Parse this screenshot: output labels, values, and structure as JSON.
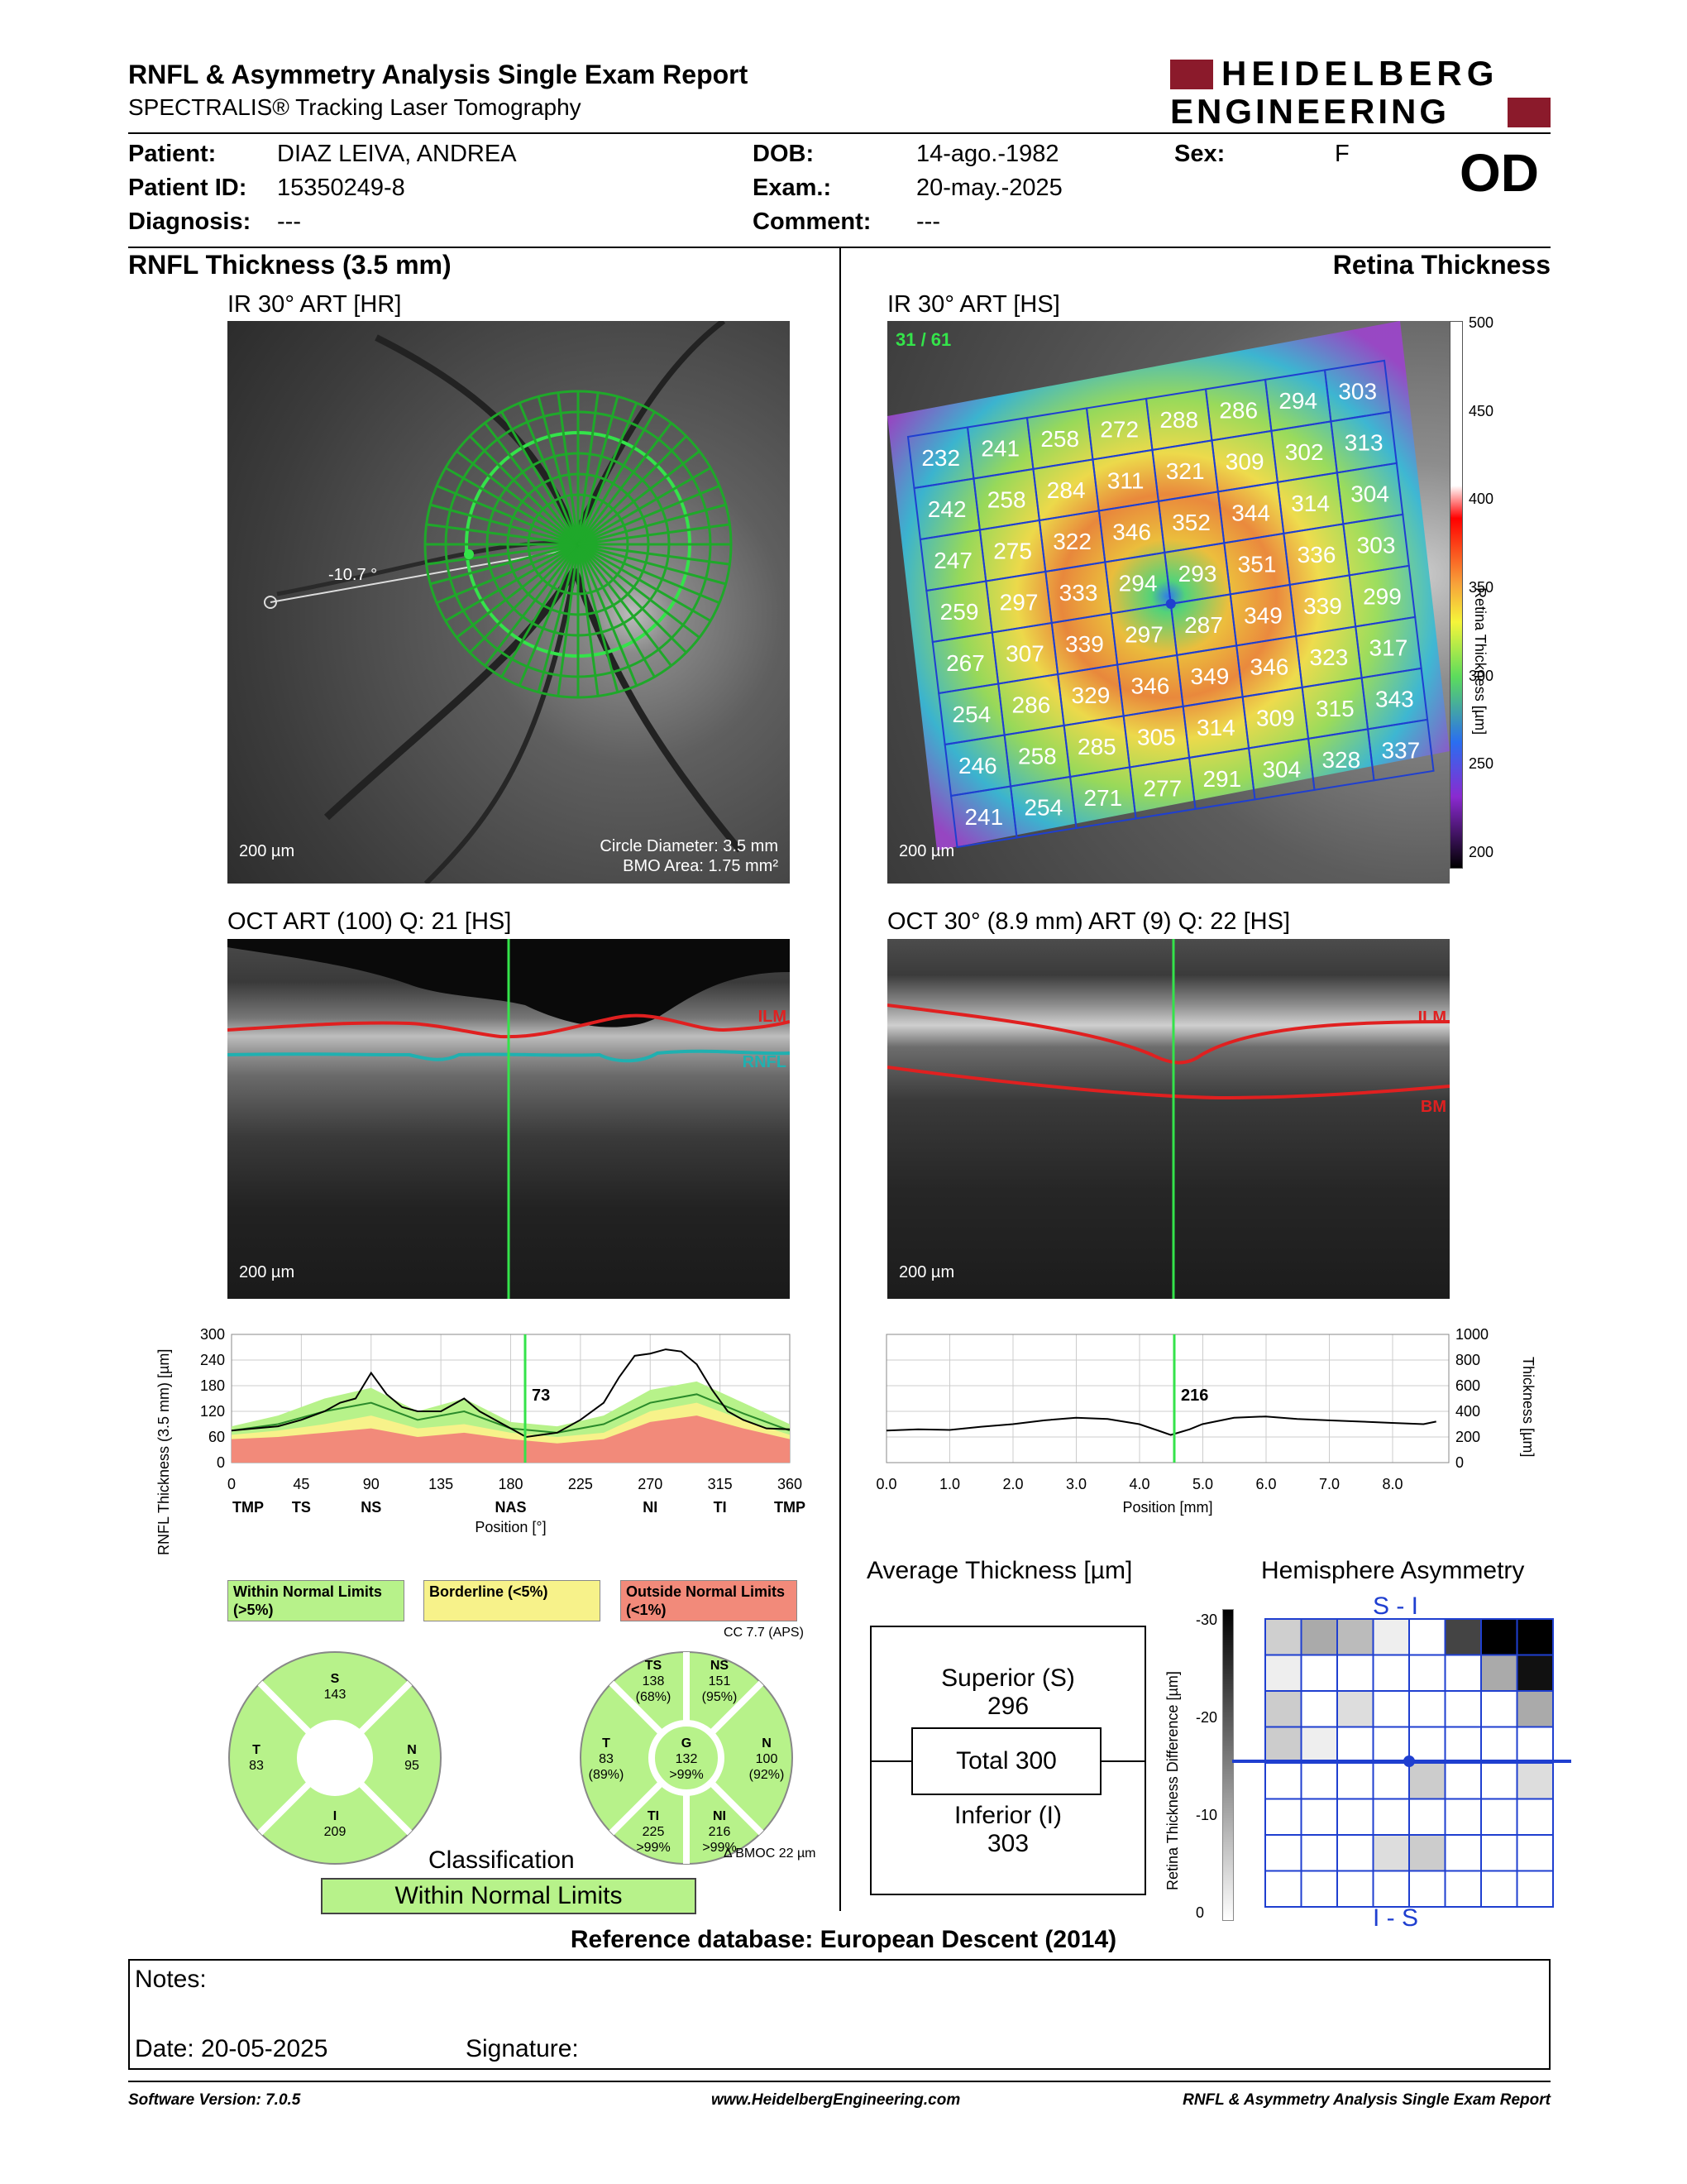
{
  "header": {
    "title": "RNFL & Asymmetry Analysis Single Exam Report",
    "subtitle": "SPECTRALIS® Tracking Laser Tomography",
    "logo_line1": "HEIDELBERG",
    "logo_line2": "ENGINEERING"
  },
  "patient": {
    "patient_label": "Patient:",
    "patient_value": "DIAZ LEIVA, ANDREA",
    "id_label": "Patient ID:",
    "id_value": "15350249-8",
    "diag_label": "Diagnosis:",
    "diag_value": "---",
    "dob_label": "DOB:",
    "dob_value": "14-ago.-1982",
    "exam_label": "Exam.:",
    "exam_value": "20-may.-2025",
    "comment_label": "Comment:",
    "comment_value": "---",
    "sex_label": "Sex:",
    "sex_value": "F",
    "eye": "OD"
  },
  "sections": {
    "left_title": "RNFL Thickness (3.5 mm)",
    "right_title": "Retina Thickness"
  },
  "ir_left": {
    "title": "IR 30° ART [HR]",
    "angle": "-10.7 °",
    "scale": "200 µm",
    "circle_diameter": "Circle Diameter: 3.5 mm",
    "bmo_area": "BMO Area: 1.75 mm²"
  },
  "ir_right": {
    "title": "IR 30° ART [HS]",
    "counter": "31 / 61",
    "scale": "200 µm",
    "grid": [
      [
        232,
        241,
        258,
        272,
        288,
        286,
        294,
        303
      ],
      [
        242,
        258,
        284,
        311,
        321,
        309,
        302,
        313
      ],
      [
        247,
        275,
        322,
        346,
        352,
        344,
        314,
        304
      ],
      [
        259,
        297,
        333,
        294,
        293,
        351,
        336,
        303
      ],
      [
        267,
        307,
        339,
        297,
        287,
        349,
        339,
        299
      ],
      [
        254,
        286,
        329,
        346,
        349,
        346,
        323,
        317
      ],
      [
        246,
        258,
        285,
        305,
        314,
        309,
        315,
        343
      ],
      [
        241,
        254,
        271,
        277,
        291,
        304,
        328,
        337
      ]
    ],
    "colorbar_ticks": [
      "500",
      "450",
      "400",
      "350",
      "300",
      "250",
      "200"
    ],
    "colorbar_label": "Retina Thickness [µm]"
  },
  "oct_left": {
    "title": "OCT ART (100) Q: 21 [HS]",
    "ilm": "ILM",
    "rnfl": "RNFL",
    "scale": "200 µm"
  },
  "oct_right": {
    "title": "OCT 30° (8.9 mm) ART (9) Q: 22 [HS]",
    "ilm": "ILM",
    "bm": "BM",
    "scale": "200 µm"
  },
  "rnfl_plot": {
    "ylabel": "RNFL Thickness (3.5 mm) [µm]",
    "xlabel": "Position [°]",
    "marker_value": "73",
    "yticks": [
      "300",
      "240",
      "180",
      "120",
      "60",
      "0"
    ],
    "xticks": [
      "0",
      "45",
      "90",
      "135",
      "180",
      "225",
      "270",
      "315",
      "360"
    ],
    "sectors": [
      "TMP",
      "TS",
      "NS",
      "NAS",
      "NI",
      "TI",
      "TMP"
    ]
  },
  "thick_plot": {
    "ylabel": "Thickness [µm]",
    "xlabel": "Position [mm]",
    "marker_value": "216",
    "yticks": [
      "1000",
      "800",
      "600",
      "400",
      "200",
      "0"
    ],
    "xticks": [
      "0.0",
      "1.0",
      "2.0",
      "3.0",
      "4.0",
      "5.0",
      "6.0",
      "7.0",
      "8.0"
    ]
  },
  "chart_data": [
    {
      "type": "line",
      "title": "",
      "xlabel": "Position [°]",
      "ylabel": "RNFL Thickness (3.5 mm) [µm]",
      "xlim": [
        0,
        360
      ],
      "ylim": [
        0,
        300
      ],
      "series": [
        {
          "name": "",
          "x": [
            0,
            15,
            30,
            45,
            60,
            70,
            80,
            90,
            100,
            110,
            120,
            135,
            150,
            160,
            170,
            180,
            190,
            200,
            210,
            225,
            240,
            250,
            260,
            270,
            280,
            290,
            300,
            310,
            320,
            330,
            345,
            360
          ],
          "values": [
            75,
            80,
            85,
            100,
            120,
            140,
            150,
            210,
            160,
            130,
            120,
            120,
            150,
            120,
            100,
            80,
            60,
            65,
            70,
            100,
            140,
            200,
            250,
            255,
            265,
            260,
            230,
            170,
            120,
            100,
            80,
            78
          ]
        }
      ]
    },
    {
      "type": "line",
      "title": "",
      "xlabel": "Position [mm]",
      "ylabel": "Thickness [µm]",
      "xlim": [
        0,
        8.9
      ],
      "ylim": [
        0,
        1000
      ],
      "series": [
        {
          "name": "",
          "x": [
            0,
            0.5,
            1,
            1.5,
            2,
            2.5,
            3,
            3.5,
            4,
            4.3,
            4.5,
            4.8,
            5,
            5.5,
            6,
            6.5,
            7,
            7.5,
            8,
            8.5,
            8.7
          ],
          "values": [
            250,
            260,
            255,
            280,
            300,
            330,
            350,
            340,
            300,
            250,
            216,
            260,
            300,
            350,
            360,
            340,
            330,
            320,
            310,
            300,
            320
          ]
        }
      ]
    }
  ],
  "legend": {
    "wnl": "Within Normal Limits (>5%)",
    "bl": "Borderline (<5%)",
    "onl": "Outside Normal Limits (<1%)"
  },
  "pie_left": {
    "S": "S",
    "S_val": "143",
    "T": "T",
    "T_val": "83",
    "N": "N",
    "N_val": "95",
    "I": "I",
    "I_val": "209"
  },
  "pie_right": {
    "cc": "CC 7.7 (APS)",
    "TS": "TS",
    "TS_val": "138",
    "TS_pct": "(68%)",
    "NS": "NS",
    "NS_val": "151",
    "NS_pct": "(95%)",
    "T": "T",
    "T_val": "83",
    "T_pct": "(89%)",
    "G": "G",
    "G_val": "132",
    "G_pct": ">99%",
    "N": "N",
    "N_val": "100",
    "N_pct": "(92%)",
    "TI": "TI",
    "TI_val": "225",
    "TI_pct": ">99%",
    "NI": "NI",
    "NI_val": "216",
    "NI_pct": ">99%",
    "bmo": "Δ BMOC 22 µm"
  },
  "classification": {
    "label": "Classification",
    "value": "Within Normal Limits"
  },
  "avg": {
    "title": "Average Thickness [µm]",
    "sup_label": "Superior (S)",
    "sup_val": "296",
    "total": "Total 300",
    "inf_label": "Inferior (I)",
    "inf_val": "303"
  },
  "asym": {
    "title": "Hemisphere Asymmetry",
    "top": "S - I",
    "bottom": "I - S",
    "ylabel": "Retina Thickness Difference [µm]",
    "yticks": [
      "-30",
      "-20",
      "-10",
      "0"
    ]
  },
  "reference": "Reference database: European Descent (2014)",
  "notes": {
    "label": "Notes:",
    "date_label": "Date: 20-05-2025",
    "sig_label": "Signature:"
  },
  "footer": {
    "software": "Software Version: 7.0.5",
    "url": "www.HeidelbergEngineering.com",
    "report": "RNFL & Asymmetry Analysis Single Exam Report"
  },
  "colors": {
    "accent_red": "#8b1a2b",
    "within": "#b7f28a",
    "borderline": "#f7f28a",
    "outside": "#f28a7a",
    "grid_blue": "#1f3fd0"
  }
}
